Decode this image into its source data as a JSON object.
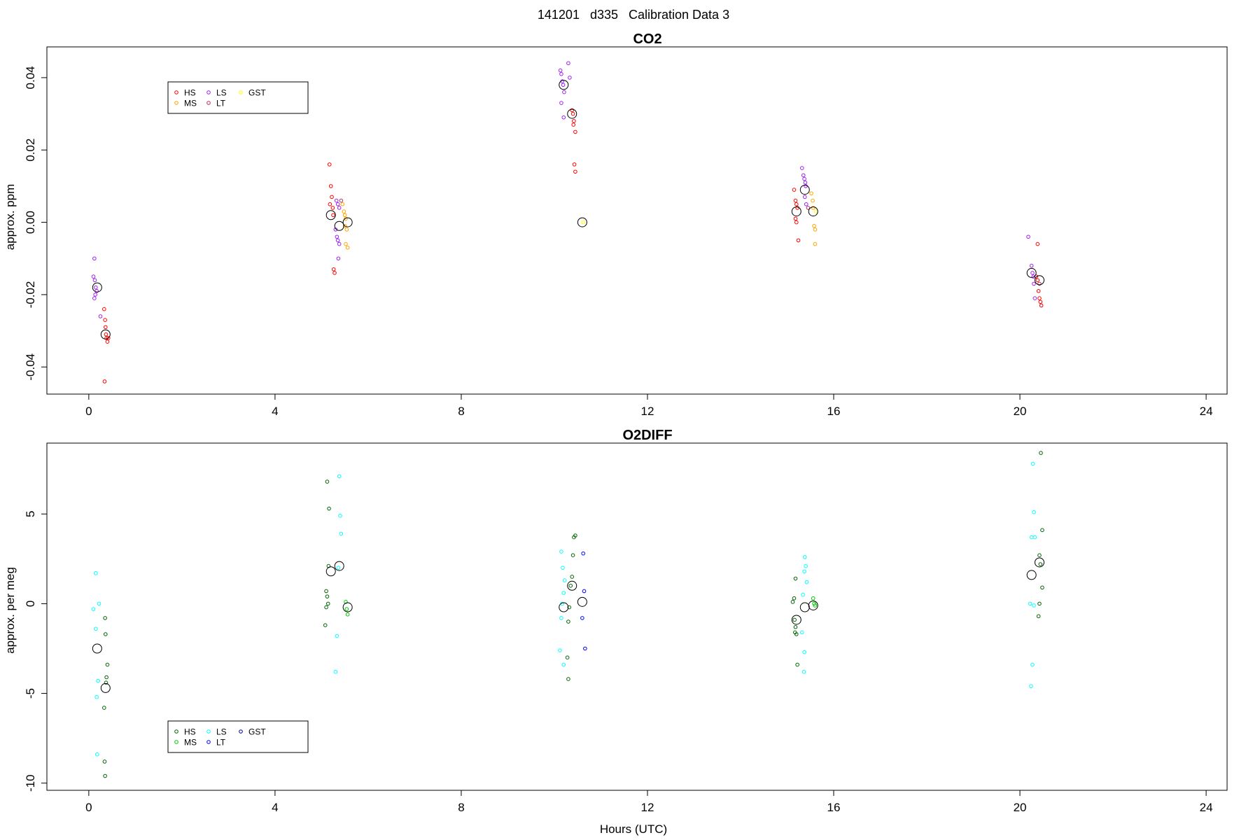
{
  "page_title": "141201   d335   Calibration Data 3",
  "chart_data": [
    {
      "type": "scatter",
      "title": "CO2",
      "xlabel": "",
      "ylabel": "approx. ppm",
      "xlim": [
        -0.9,
        24.45
      ],
      "ylim": [
        -0.0475,
        0.0485
      ],
      "xticks": [
        "0",
        "4",
        "8",
        "12",
        "16",
        "20",
        "24"
      ],
      "yticks": [
        "-0.04",
        "-0.02",
        "0.00",
        "0.02",
        "0.04"
      ],
      "legend": [
        {
          "label": "HS",
          "color": "#ff0000"
        },
        {
          "label": "MS",
          "color": "#ffa500"
        },
        {
          "label": "LS",
          "color": "#a020f0"
        },
        {
          "label": "LT",
          "color": "#b03060"
        },
        {
          "label": "GST",
          "color": "#ffff00"
        }
      ],
      "legend_position": "top-left",
      "grid": false,
      "series": [
        {
          "name": "HS",
          "color": "#ff0000",
          "points": [
            [
              0.33,
              -0.024
            ],
            [
              0.36,
              -0.029
            ],
            [
              0.37,
              -0.031
            ],
            [
              0.38,
              -0.032
            ],
            [
              0.4,
              -0.033
            ],
            [
              0.42,
              -0.032
            ],
            [
              0.34,
              -0.044
            ],
            [
              0.35,
              -0.027
            ],
            [
              5.17,
              0.016
            ],
            [
              5.2,
              0.01
            ],
            [
              5.22,
              0.007
            ],
            [
              5.18,
              0.005
            ],
            [
              5.24,
              0.004
            ],
            [
              5.25,
              0.002
            ],
            [
              5.26,
              -0.013
            ],
            [
              5.28,
              -0.014
            ],
            [
              10.38,
              0.031
            ],
            [
              10.4,
              0.03
            ],
            [
              10.42,
              0.028
            ],
            [
              10.41,
              0.027
            ],
            [
              10.45,
              0.025
            ],
            [
              10.43,
              0.016
            ],
            [
              10.45,
              0.014
            ],
            [
              15.15,
              0.009
            ],
            [
              15.18,
              0.006
            ],
            [
              15.2,
              0.005
            ],
            [
              15.22,
              0.004
            ],
            [
              15.18,
              0.001
            ],
            [
              15.2,
              0.0
            ],
            [
              15.24,
              -0.005
            ],
            [
              20.35,
              -0.015
            ],
            [
              20.38,
              -0.016
            ],
            [
              20.4,
              -0.019
            ],
            [
              20.42,
              -0.021
            ],
            [
              20.44,
              -0.022
            ],
            [
              20.46,
              -0.023
            ],
            [
              20.38,
              -0.006
            ]
          ]
        },
        {
          "name": "MS",
          "color": "#ffa500",
          "points": [
            [
              5.45,
              0.005
            ],
            [
              5.48,
              0.003
            ],
            [
              5.5,
              0.002
            ],
            [
              5.52,
              0.001
            ],
            [
              5.54,
              -0.002
            ],
            [
              5.52,
              -0.006
            ],
            [
              5.56,
              -0.007
            ],
            [
              5.5,
              -0.001
            ],
            [
              15.52,
              0.008
            ],
            [
              15.55,
              0.006
            ],
            [
              15.56,
              0.004
            ],
            [
              15.58,
              -0.001
            ],
            [
              15.6,
              -0.002
            ],
            [
              15.6,
              -0.006
            ]
          ]
        },
        {
          "name": "LS",
          "color": "#a020f0",
          "points": [
            [
              0.12,
              -0.01
            ],
            [
              0.1,
              -0.015
            ],
            [
              0.13,
              -0.016
            ],
            [
              0.15,
              -0.018
            ],
            [
              0.17,
              -0.019
            ],
            [
              0.14,
              -0.02
            ],
            [
              0.12,
              -0.021
            ],
            [
              0.25,
              -0.026
            ],
            [
              5.32,
              0.006
            ],
            [
              5.35,
              0.005
            ],
            [
              5.38,
              0.004
            ],
            [
              5.3,
              -0.002
            ],
            [
              5.33,
              -0.004
            ],
            [
              5.35,
              -0.005
            ],
            [
              5.38,
              -0.006
            ],
            [
              5.36,
              -0.01
            ],
            [
              10.13,
              0.042
            ],
            [
              10.15,
              0.041
            ],
            [
              10.17,
              0.039
            ],
            [
              10.19,
              0.038
            ],
            [
              10.21,
              0.036
            ],
            [
              10.15,
              0.033
            ],
            [
              10.2,
              0.029
            ],
            [
              10.3,
              0.044
            ],
            [
              10.33,
              0.04
            ],
            [
              15.32,
              0.015
            ],
            [
              15.35,
              0.013
            ],
            [
              15.37,
              0.012
            ],
            [
              15.39,
              0.011
            ],
            [
              15.4,
              0.01
            ],
            [
              15.38,
              0.007
            ],
            [
              15.41,
              0.005
            ],
            [
              20.18,
              -0.004
            ],
            [
              20.25,
              -0.012
            ],
            [
              20.27,
              -0.014
            ],
            [
              20.29,
              -0.015
            ],
            [
              20.3,
              -0.017
            ],
            [
              20.32,
              -0.021
            ]
          ]
        },
        {
          "name": "LT",
          "color": "#b03060",
          "points": [
            [
              5.42,
              0.006
            ],
            [
              15.45,
              0.004
            ],
            [
              20.42,
              -0.017
            ]
          ]
        },
        {
          "name": "GST",
          "color": "#ffff00",
          "points": [
            [
              10.62,
              0.0
            ],
            [
              15.62,
              0.003
            ]
          ]
        }
      ],
      "means": [
        [
          0.18,
          -0.018
        ],
        [
          0.36,
          -0.031
        ],
        [
          5.2,
          0.002
        ],
        [
          5.38,
          -0.001
        ],
        [
          5.56,
          0.0
        ],
        [
          10.2,
          0.038
        ],
        [
          10.38,
          0.03
        ],
        [
          10.6,
          0.0
        ],
        [
          15.2,
          0.003
        ],
        [
          15.38,
          0.009
        ],
        [
          15.56,
          0.003
        ],
        [
          20.25,
          -0.014
        ],
        [
          20.42,
          -0.016
        ]
      ]
    },
    {
      "type": "scatter",
      "title": "O2DIFF",
      "xlabel": "Hours (UTC)",
      "ylabel": "approx. per meg",
      "xlim": [
        -0.9,
        24.45
      ],
      "ylim": [
        -10.4,
        8.95
      ],
      "xticks": [
        "0",
        "4",
        "8",
        "12",
        "16",
        "20",
        "24"
      ],
      "yticks": [
        "-10",
        "-5",
        "0",
        "5"
      ],
      "legend": [
        {
          "label": "HS",
          "color": "#006400"
        },
        {
          "label": "MS",
          "color": "#00cc00"
        },
        {
          "label": "LS",
          "color": "#00ffff"
        },
        {
          "label": "LT",
          "color": "#0000ff"
        },
        {
          "label": "GST",
          "color": "#00008b"
        }
      ],
      "legend_position": "bottom-left",
      "grid": false,
      "series": [
        {
          "name": "HS",
          "color": "#006400",
          "points": [
            [
              0.35,
              -0.8
            ],
            [
              0.36,
              -1.7
            ],
            [
              0.4,
              -3.4
            ],
            [
              0.38,
              -4.1
            ],
            [
              0.37,
              -4.4
            ],
            [
              0.33,
              -5.8
            ],
            [
              0.34,
              -8.8
            ],
            [
              0.35,
              -9.6
            ],
            [
              5.12,
              6.8
            ],
            [
              5.16,
              5.3
            ],
            [
              5.15,
              2.1
            ],
            [
              5.1,
              0.7
            ],
            [
              5.12,
              0.4
            ],
            [
              5.14,
              0.0
            ],
            [
              5.1,
              -0.2
            ],
            [
              5.08,
              -1.2
            ],
            [
              10.45,
              3.8
            ],
            [
              10.42,
              3.7
            ],
            [
              10.4,
              2.7
            ],
            [
              10.38,
              1.5
            ],
            [
              10.35,
              1.0
            ],
            [
              10.32,
              -0.2
            ],
            [
              10.3,
              -1.0
            ],
            [
              10.28,
              -3.0
            ],
            [
              10.3,
              -4.2
            ],
            [
              15.18,
              1.4
            ],
            [
              15.15,
              0.3
            ],
            [
              15.12,
              0.1
            ],
            [
              15.16,
              -0.9
            ],
            [
              15.18,
              -1.3
            ],
            [
              15.17,
              -1.6
            ],
            [
              15.2,
              -1.7
            ],
            [
              15.22,
              -3.4
            ],
            [
              20.45,
              8.4
            ],
            [
              20.48,
              4.1
            ],
            [
              20.42,
              2.7
            ],
            [
              20.44,
              2.2
            ],
            [
              20.48,
              0.9
            ],
            [
              20.42,
              0.0
            ],
            [
              20.4,
              -0.7
            ]
          ]
        },
        {
          "name": "MS",
          "color": "#00cc00",
          "points": [
            [
              5.52,
              0.1
            ],
            [
              5.54,
              -0.3
            ],
            [
              5.56,
              -0.6
            ],
            [
              15.56,
              0.3
            ],
            [
              15.58,
              0.0
            ],
            [
              15.6,
              -0.1
            ]
          ]
        },
        {
          "name": "LS",
          "color": "#00ffff",
          "points": [
            [
              0.15,
              1.7
            ],
            [
              0.22,
              0.0
            ],
            [
              0.1,
              -0.3
            ],
            [
              0.15,
              -1.4
            ],
            [
              0.2,
              -4.3
            ],
            [
              0.17,
              -5.2
            ],
            [
              0.18,
              -8.4
            ],
            [
              5.38,
              7.1
            ],
            [
              5.4,
              4.9
            ],
            [
              5.42,
              3.9
            ],
            [
              5.36,
              2.0
            ],
            [
              5.33,
              -1.8
            ],
            [
              5.3,
              -3.8
            ],
            [
              10.15,
              2.9
            ],
            [
              10.18,
              2.0
            ],
            [
              10.22,
              1.3
            ],
            [
              10.2,
              0.6
            ],
            [
              10.17,
              0.0
            ],
            [
              10.15,
              -0.8
            ],
            [
              10.12,
              -2.6
            ],
            [
              10.2,
              -3.4
            ],
            [
              15.38,
              2.6
            ],
            [
              15.4,
              2.1
            ],
            [
              15.37,
              1.8
            ],
            [
              15.42,
              1.2
            ],
            [
              15.34,
              0.5
            ],
            [
              15.32,
              -1.6
            ],
            [
              15.37,
              -2.7
            ],
            [
              15.36,
              -3.8
            ],
            [
              20.28,
              7.8
            ],
            [
              20.3,
              5.1
            ],
            [
              20.25,
              3.7
            ],
            [
              20.32,
              3.7
            ],
            [
              20.22,
              0.0
            ],
            [
              20.3,
              -0.1
            ],
            [
              20.27,
              -3.4
            ],
            [
              20.24,
              -4.6
            ]
          ]
        },
        {
          "name": "LT",
          "color": "#0000ff",
          "points": [
            [
              10.62,
              2.8
            ],
            [
              10.64,
              0.7
            ],
            [
              10.6,
              -0.8
            ],
            [
              10.66,
              -2.5
            ]
          ]
        },
        {
          "name": "GST",
          "color": "#00008b",
          "points": []
        }
      ],
      "means": [
        [
          0.18,
          -2.5
        ],
        [
          0.36,
          -4.7
        ],
        [
          5.2,
          1.8
        ],
        [
          5.38,
          2.1
        ],
        [
          5.56,
          -0.2
        ],
        [
          10.2,
          -0.2
        ],
        [
          10.38,
          1.0
        ],
        [
          10.6,
          0.1
        ],
        [
          15.2,
          -0.9
        ],
        [
          15.38,
          -0.2
        ],
        [
          15.56,
          -0.1
        ],
        [
          20.25,
          1.6
        ],
        [
          20.42,
          2.3
        ]
      ]
    }
  ]
}
